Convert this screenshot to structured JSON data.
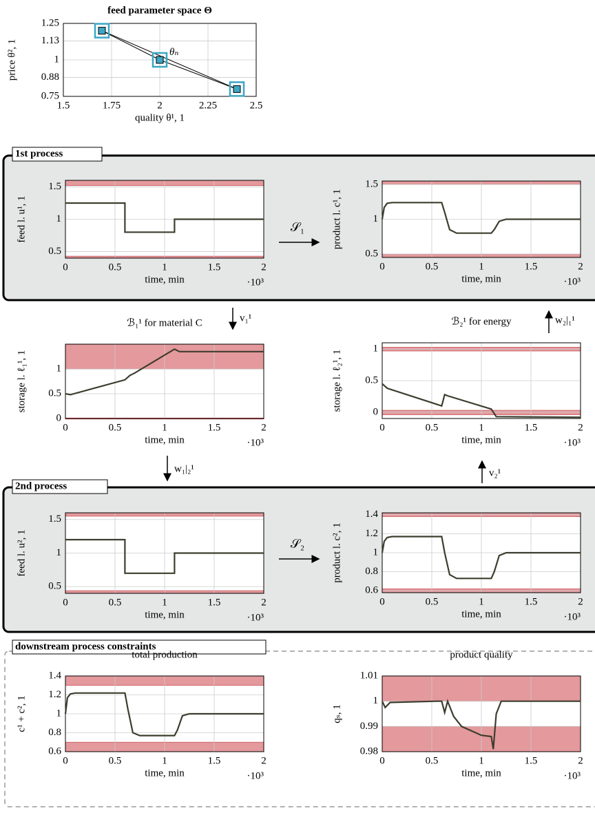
{
  "labels": {
    "sections": [
      "1st process",
      "2nd process",
      "downstream process constraints"
    ],
    "s1": "𝒮₁",
    "s2": "𝒮₂",
    "v1": "v₁¹",
    "w21": "w₂|₁¹",
    "w12": "w₁|₂¹",
    "v2": "v₂¹"
  },
  "chart_data": [
    {
      "type": "scatter",
      "title": "feed parameter space Θ",
      "xlabel": "quality θ¹, 1",
      "ylabel": "price θ², 1",
      "x": [
        1.7,
        2,
        2.4
      ],
      "values": [
        1.2,
        1,
        0.8
      ],
      "color": "#3aa6c4",
      "annotation": "θₙ",
      "xlim": [
        1.5,
        2.5
      ],
      "xticks": [
        1.5,
        1.75,
        2,
        2.25,
        2.5
      ],
      "ylim": [
        0.75,
        1.25
      ],
      "yticks": [
        0.75,
        0.88,
        1,
        1.13,
        1.25
      ],
      "grid": true
    },
    {
      "type": "line",
      "ylabel": "feed l. u¹, 1",
      "xlabel": "time, min",
      "xscale_label": "·10³",
      "color": "#3d3d2e",
      "band_color": "#e4999c",
      "x": [
        0,
        0.6,
        0.6,
        1.1,
        1.1,
        2
      ],
      "values": [
        1.25,
        1.25,
        0.8,
        0.8,
        1,
        1
      ],
      "bands": [
        [
          1.52,
          1.6
        ],
        [
          0.4,
          0.43
        ]
      ],
      "xlim": [
        0,
        2
      ],
      "xticks": [
        0,
        0.5,
        1,
        1.5,
        2
      ],
      "ylim": [
        0.4,
        1.6
      ],
      "yticks": [
        0.5,
        1,
        1.5
      ],
      "grid": true
    },
    {
      "type": "line",
      "ylabel": "product l. c¹, 1",
      "xlabel": "time, min",
      "xscale_label": "·10³",
      "color": "#3d3d2e",
      "band_color": "#e4999c",
      "x": [
        0,
        0.02,
        0.05,
        0.1,
        0.6,
        0.63,
        0.68,
        0.75,
        1.1,
        1.13,
        1.18,
        1.25,
        2
      ],
      "values": [
        1.0,
        1.17,
        1.23,
        1.24,
        1.24,
        1.1,
        0.85,
        0.8,
        0.8,
        0.85,
        0.97,
        1.0,
        1.0
      ],
      "bands": [
        [
          1.5,
          1.55
        ],
        [
          0.45,
          0.5
        ]
      ],
      "xlim": [
        0,
        2
      ],
      "xticks": [
        0,
        0.5,
        1,
        1.5,
        2
      ],
      "ylim": [
        0.45,
        1.55
      ],
      "yticks": [
        0.5,
        1,
        1.5
      ],
      "grid": true
    },
    {
      "type": "line",
      "title": "ℬ₁¹ for material C",
      "ylabel": "storage l. ℓ₁¹, 1",
      "xlabel": "time, min",
      "xscale_label": "·10³",
      "color": "#3d3d2e",
      "band_color": "#e4999c",
      "x": [
        0,
        0.05,
        0.6,
        0.65,
        0.7,
        1.1,
        1.15,
        2
      ],
      "values": [
        0.5,
        0.48,
        0.78,
        0.87,
        0.92,
        1.4,
        1.35,
        1.35
      ],
      "bands": [
        [
          1,
          1.5
        ],
        [
          0,
          0.01
        ]
      ],
      "xlim": [
        0,
        2
      ],
      "xticks": [
        0,
        0.5,
        1,
        1.5,
        2
      ],
      "ylim": [
        0,
        1.5
      ],
      "yticks": [
        0,
        0.5,
        1
      ],
      "grid": true
    },
    {
      "type": "line",
      "title": "ℬ₂¹ for energy",
      "ylabel": "storage l. ℓ₂¹, 1",
      "xlabel": "time, min",
      "xscale_label": "·10³",
      "color": "#3d3d2e",
      "band_color": "#e4999c",
      "x": [
        0,
        0.05,
        0.6,
        0.63,
        0.66,
        1.1,
        1.15,
        2
      ],
      "values": [
        0.45,
        0.38,
        0.1,
        0.28,
        0.26,
        0.05,
        -0.07,
        -0.08
      ],
      "bands": [
        [
          0.97,
          1.03
        ],
        [
          -0.04,
          0.03
        ]
      ],
      "xlim": [
        0,
        2
      ],
      "xticks": [
        0,
        0.5,
        1,
        1.5,
        2
      ],
      "ylim": [
        -0.1,
        1.1
      ],
      "yticks": [
        0,
        0.5,
        1
      ],
      "grid": true
    },
    {
      "type": "line",
      "ylabel": "feed l. u², 1",
      "xlabel": "time, min",
      "xscale_label": "·10³",
      "color": "#3d3d2e",
      "band_color": "#e4999c",
      "x": [
        0,
        0.6,
        0.6,
        1.1,
        1.1,
        2
      ],
      "values": [
        1.2,
        1.2,
        0.7,
        0.7,
        1,
        1
      ],
      "bands": [
        [
          1.55,
          1.6
        ],
        [
          0.4,
          0.44
        ]
      ],
      "xlim": [
        0,
        2
      ],
      "xticks": [
        0,
        0.5,
        1,
        1.5,
        2
      ],
      "ylim": [
        0.4,
        1.6
      ],
      "yticks": [
        0.5,
        1,
        1.5
      ],
      "grid": true
    },
    {
      "type": "line",
      "ylabel": "product l. c², 1",
      "xlabel": "time, min",
      "xscale_label": "·10³",
      "color": "#3d3d2e",
      "band_color": "#e4999c",
      "x": [
        0,
        0.02,
        0.05,
        0.1,
        0.6,
        0.63,
        0.68,
        0.75,
        1.1,
        1.13,
        1.18,
        1.25,
        2
      ],
      "values": [
        1.0,
        1.12,
        1.16,
        1.17,
        1.17,
        1.0,
        0.77,
        0.73,
        0.73,
        0.8,
        0.97,
        1.0,
        1.0
      ],
      "bands": [
        [
          1.38,
          1.42
        ],
        [
          0.58,
          0.62
        ]
      ],
      "xlim": [
        0,
        2
      ],
      "xticks": [
        0,
        0.5,
        1,
        1.5,
        2
      ],
      "ylim": [
        0.58,
        1.42
      ],
      "yticks": [
        0.6,
        0.8,
        1,
        1.2,
        1.4
      ],
      "grid": true
    },
    {
      "type": "line",
      "title": "total production",
      "ylabel": "c¹ + c², 1",
      "xlabel": "time, min",
      "xscale_label": "·10³",
      "color": "#3d3d2e",
      "band_color": "#e4999c",
      "x": [
        0,
        0.02,
        0.05,
        0.1,
        0.6,
        0.63,
        0.68,
        0.75,
        1.1,
        1.13,
        1.18,
        1.25,
        2
      ],
      "values": [
        1.0,
        1.17,
        1.21,
        1.22,
        1.22,
        1.05,
        0.8,
        0.77,
        0.77,
        0.83,
        0.98,
        1.0,
        1.0
      ],
      "bands": [
        [
          1.3,
          1.4
        ],
        [
          0.6,
          0.7
        ]
      ],
      "xlim": [
        0,
        2
      ],
      "xticks": [
        0,
        0.5,
        1,
        1.5,
        2
      ],
      "ylim": [
        0.6,
        1.4
      ],
      "yticks": [
        0.6,
        0.8,
        1,
        1.2,
        1.4
      ],
      "grid": true
    },
    {
      "type": "line",
      "title": "product quality",
      "ylabel": "qₛ, 1",
      "xlabel": "time, min",
      "xscale_label": "·10³",
      "color": "#3d3d2e",
      "band_color": "#e4999c",
      "x": [
        0,
        0.03,
        0.08,
        0.55,
        0.6,
        0.63,
        0.66,
        0.72,
        0.8,
        1.0,
        1.1,
        1.12,
        1.15,
        1.2,
        2
      ],
      "values": [
        1.0,
        0.9975,
        0.9995,
        1.0,
        1.0,
        0.9955,
        1.0,
        0.994,
        0.99,
        0.9865,
        0.986,
        0.981,
        0.995,
        1.0,
        1.0
      ],
      "bands": [
        [
          1,
          1.01
        ],
        [
          0.98,
          0.99
        ]
      ],
      "xlim": [
        0,
        2
      ],
      "xticks": [
        0,
        0.5,
        1,
        1.5,
        2
      ],
      "ylim": [
        0.98,
        1.01
      ],
      "yticks": [
        0.98,
        0.99,
        1,
        1.01
      ],
      "grid": true
    }
  ]
}
